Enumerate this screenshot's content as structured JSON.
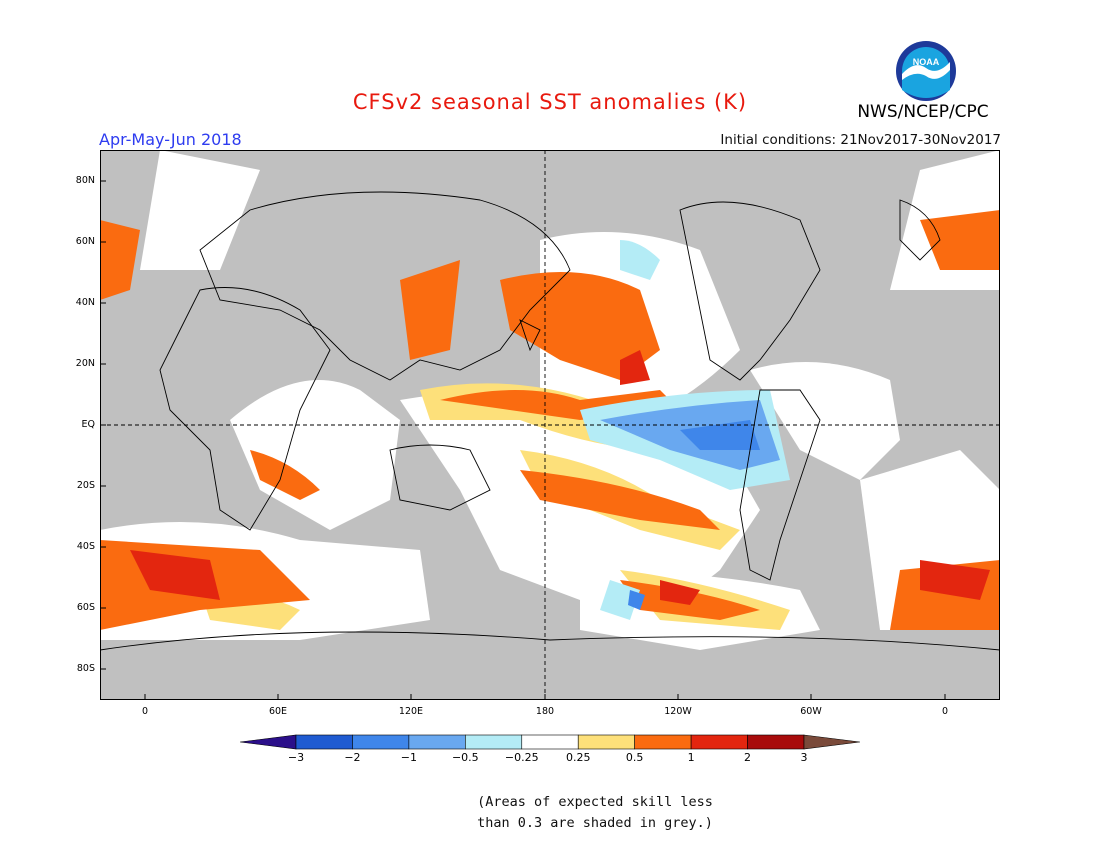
{
  "header": {
    "title": "CFSv2 seasonal SST anomalies (K)",
    "season": "Apr-May-Jun 2018",
    "initial_conditions": "Initial conditions: 21Nov2017-30Nov2017",
    "agency": "NWS/NCEP/CPC",
    "logo_text": "NOAA"
  },
  "map": {
    "lat_labels": [
      "80N",
      "60N",
      "40N",
      "20N",
      "EQ",
      "20S",
      "40S",
      "60S",
      "80S"
    ],
    "lon_labels": [
      "0",
      "60E",
      "120E",
      "180",
      "120W",
      "60W",
      "0"
    ],
    "ocean_color": "#ffffff",
    "land_color": "#c0c0c0",
    "low_skill_color": "#c0c0c0"
  },
  "colorbar": {
    "tick_labels": [
      "-3",
      "-2",
      "-1",
      "-0.5",
      "-0.25",
      "0.25",
      "0.5",
      "1",
      "2",
      "3"
    ],
    "colors": [
      "#2b0f8a",
      "#1f5bd1",
      "#3f86ea",
      "#69a8f0",
      "#b4ecf6",
      "#ffffff",
      "#fde07a",
      "#fa6b10",
      "#e3260f",
      "#a80b0b",
      "#7a4a3a"
    ]
  },
  "note": {
    "line1": "(Areas of expected skill less",
    "line2": "than 0.3 are shaded in grey.)"
  }
}
